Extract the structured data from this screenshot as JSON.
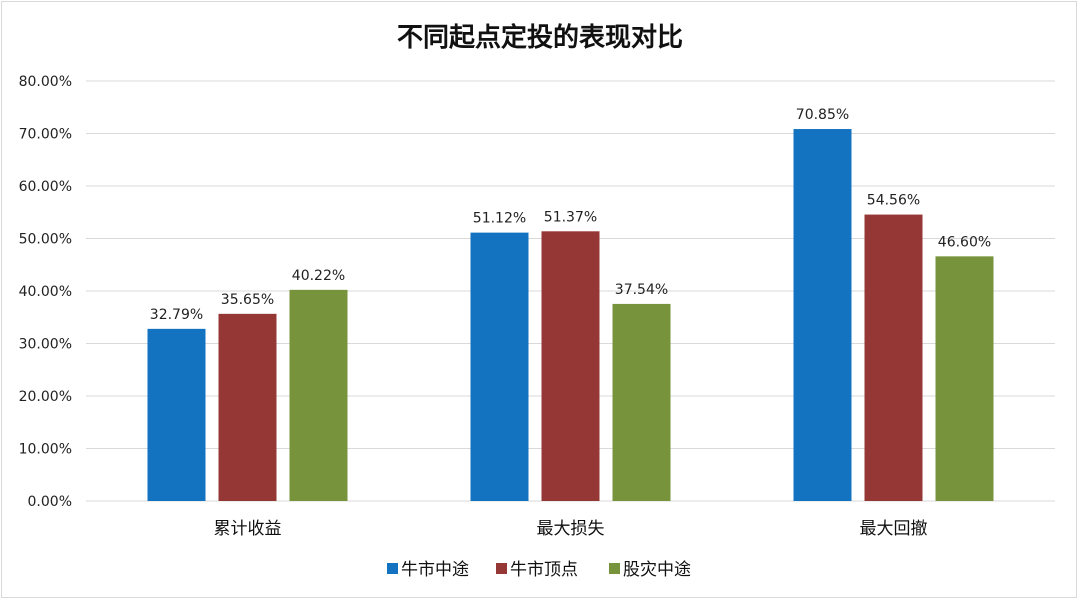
{
  "chart_data": {
    "type": "bar",
    "title": "不同起点定投的表现对比",
    "categories": [
      "累计收益",
      "最大损失",
      "最大回撤"
    ],
    "series": [
      {
        "name": "牛市中途",
        "color": "#1373c0",
        "values": [
          32.79,
          51.12,
          70.85
        ],
        "labels": [
          "32.79%",
          "51.12%",
          "70.85%"
        ]
      },
      {
        "name": "牛市顶点",
        "color": "#953735",
        "values": [
          35.65,
          51.37,
          54.56
        ],
        "labels": [
          "35.65%",
          "51.37%",
          "54.56%"
        ]
      },
      {
        "name": "股灾中途",
        "color": "#77933c",
        "values": [
          40.22,
          37.54,
          46.6
        ],
        "labels": [
          "40.22%",
          "37.54%",
          "46.60%"
        ]
      }
    ],
    "ylim": [
      0,
      80
    ],
    "yticks": [
      "0.00%",
      "10.00%",
      "20.00%",
      "30.00%",
      "40.00%",
      "50.00%",
      "60.00%",
      "70.00%",
      "80.00%"
    ],
    "xlabel": "",
    "ylabel": "",
    "grid": true,
    "legend": "bottom"
  }
}
